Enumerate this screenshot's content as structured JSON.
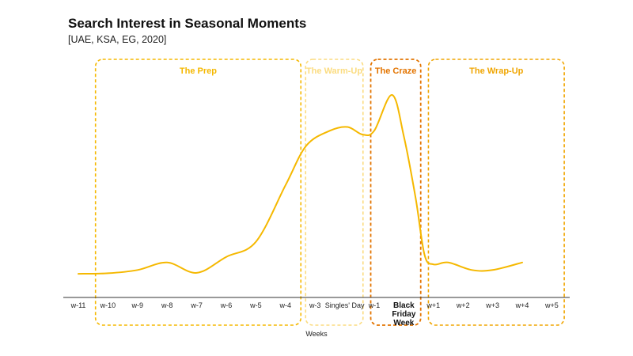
{
  "header": {
    "title": "Search Interest in Seasonal Moments",
    "subtitle": "[UAE, KSA, EG, 2020]"
  },
  "colors": {
    "line": "#f5b800",
    "prep": "#f5b800",
    "warmup": "#fbdc80",
    "craze": "#e37400",
    "wrapup": "#f0a500",
    "axis": "#333333"
  },
  "chart_data": {
    "type": "line",
    "title": "Search Interest in Seasonal Moments",
    "subtitle": "[UAE, KSA, EG, 2020]",
    "xlabel": "Weeks",
    "ylabel": "",
    "categories": [
      "w-11",
      "w-10",
      "w-9",
      "w-8",
      "w-7",
      "w-6",
      "w-5",
      "w-4",
      "w-3",
      "Singles' Day",
      "w-1",
      "Black Friday Week",
      "w+1",
      "w+2",
      "w+3",
      "w+4",
      "w+5"
    ],
    "bold_categories": [
      "Black Friday Week"
    ],
    "series": [
      {
        "values": [
          [
            0,
            5
          ],
          [
            1,
            5.3
          ],
          [
            2,
            7
          ],
          [
            3,
            11
          ],
          [
            4,
            5.5
          ],
          [
            5,
            14
          ],
          [
            6,
            22
          ],
          [
            7,
            52
          ],
          [
            7.7,
            73
          ],
          [
            8.5,
            81
          ],
          [
            9.1,
            83
          ],
          [
            9.6,
            79
          ],
          [
            10,
            81
          ],
          [
            10.6,
            100
          ],
          [
            11,
            78
          ],
          [
            11.4,
            45
          ],
          [
            11.7,
            15
          ],
          [
            12,
            10
          ],
          [
            12.5,
            11
          ],
          [
            13.3,
            7
          ],
          [
            14,
            7
          ],
          [
            15,
            11
          ]
        ]
      }
    ],
    "phases": [
      {
        "label": "The Prep",
        "from": 0.5,
        "to": 7.6
      },
      {
        "label": "The Warm-Up",
        "from": 7.6,
        "to": 9.7
      },
      {
        "label": "The Craze",
        "from": 9.8,
        "to": 11.65
      },
      {
        "label": "The Wrap-Up",
        "from": 11.75,
        "to": 16.5
      }
    ],
    "ylim": [
      0,
      100
    ],
    "grid": false,
    "legend": "none"
  }
}
